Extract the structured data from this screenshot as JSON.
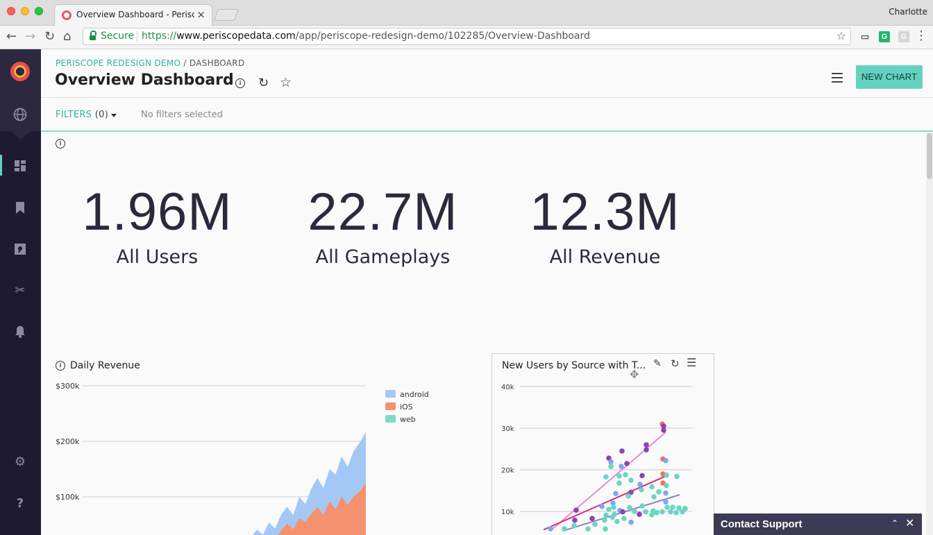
{
  "browser": {
    "tab_title": "Overview Dashboard - Perisco",
    "profile": "Charlotte",
    "secure_label": "Secure",
    "url_scheme": "https://",
    "url_host": "www.periscopedata.com",
    "url_path": "/app/periscope-redesign-demo/102285/Overview-Dashboard"
  },
  "header": {
    "breadcrumb_root": "PERISCOPE REDESIGN DEMO",
    "breadcrumb_sep": " / ",
    "breadcrumb_current": "DASHBOARD",
    "title": "Overview Dashboard",
    "new_chart_label": "NEW CHART"
  },
  "filters": {
    "label": "FILTERS",
    "count": "(0)",
    "status": "No filters selected"
  },
  "metrics": [
    {
      "value": "1.96M",
      "label": "All Users"
    },
    {
      "value": "22.7M",
      "label": "All Gameplays"
    },
    {
      "value": "12.3M",
      "label": "All Revenue"
    }
  ],
  "support": {
    "label": "Contact Support"
  },
  "colors": {
    "accent": "#64d2bf",
    "sidebar": "#1e1a31",
    "android": "#a3c8f5",
    "ios": "#f4926f",
    "web": "#7fd9c8"
  },
  "chart_data": [
    {
      "type": "area",
      "title": "Daily Revenue",
      "y_ticks": [
        "$300k",
        "$200k",
        "$100k"
      ],
      "ylim": [
        0,
        300000
      ],
      "stacked": true,
      "legend_position": "right",
      "series": [
        {
          "name": "android",
          "color": "#a3c8f5",
          "values": [
            0,
            500,
            1000,
            2000,
            5000,
            9000,
            12000,
            20000,
            15000,
            24000,
            18000,
            28000,
            30000,
            25000,
            38000,
            32000,
            45000,
            52000,
            48000,
            58000,
            62000,
            72000,
            68000,
            82000,
            88000,
            92000
          ]
        },
        {
          "name": "iOS",
          "color": "#f4926f",
          "values": [
            0,
            400,
            800,
            1500,
            4000,
            8000,
            15000,
            21000,
            17000,
            30000,
            25000,
            40000,
            52000,
            42000,
            62000,
            55000,
            70000,
            82000,
            68000,
            92000,
            78000,
            98000,
            85000,
            96000,
            102000,
            110000
          ]
        },
        {
          "name": "web",
          "color": "#7fd9c8",
          "values": [
            0,
            0,
            0,
            0,
            0,
            0,
            0,
            0,
            0,
            0,
            0,
            0,
            0,
            0,
            0,
            0,
            0,
            0,
            0,
            0,
            0,
            3000,
            1000,
            5000,
            8000,
            15000
          ]
        }
      ]
    },
    {
      "type": "scatter",
      "title": "New Users by Source with T...",
      "y_ticks": [
        "40k",
        "30k",
        "20k",
        "10k"
      ],
      "ylim": [
        0,
        40000
      ],
      "grid": true,
      "points": [
        {
          "x": 2,
          "y": 31000,
          "c": "#f0735a"
        },
        {
          "x": 4,
          "y": 30500,
          "c": "#8e44ad"
        },
        {
          "x": 4,
          "y": 29500,
          "c": "#8e44ad"
        },
        {
          "x": -21,
          "y": 26000,
          "c": "#8e44ad"
        },
        {
          "x": -21,
          "y": 24800,
          "c": "#8e44ad"
        },
        {
          "x": -56,
          "y": 24500,
          "c": "#8e44ad"
        },
        {
          "x": -75,
          "y": 22800,
          "c": "#8e44ad"
        },
        {
          "x": -72,
          "y": 21900,
          "c": "#7aa9f5"
        },
        {
          "x": -49,
          "y": 21500,
          "c": "#8e44ad"
        },
        {
          "x": 3,
          "y": 22600,
          "c": "#f0735a"
        },
        {
          "x": 7,
          "y": 22200,
          "c": "#7aa9f5"
        },
        {
          "x": -72,
          "y": 20800,
          "c": "#6dd4c3"
        },
        {
          "x": -57,
          "y": 20800,
          "c": "#7aa9f5"
        },
        {
          "x": -79,
          "y": 18300,
          "c": "#6dd4c3"
        },
        {
          "x": -60,
          "y": 18500,
          "c": "#6dd4c3"
        },
        {
          "x": -51,
          "y": 18800,
          "c": "#6dd4c3"
        },
        {
          "x": -27,
          "y": 18600,
          "c": "#8e44ad"
        },
        {
          "x": 3,
          "y": 19000,
          "c": "#f0735a"
        },
        {
          "x": 8,
          "y": 18700,
          "c": "#6dd4c3"
        },
        {
          "x": 23,
          "y": 18400,
          "c": "#6dd4c3"
        },
        {
          "x": -43,
          "y": 17500,
          "c": "#6dd4c3"
        },
        {
          "x": -60,
          "y": 16800,
          "c": "#6dd4c3"
        },
        {
          "x": -30,
          "y": 16500,
          "c": "#7aa9f5"
        },
        {
          "x": 3,
          "y": 16800,
          "c": "#f0735a"
        },
        {
          "x": 8,
          "y": 16200,
          "c": "#6dd4c3"
        },
        {
          "x": -13,
          "y": 15900,
          "c": "#6dd4c3"
        },
        {
          "x": -28,
          "y": 15200,
          "c": "#6dd4c3"
        },
        {
          "x": -43,
          "y": 14600,
          "c": "#8e44ad"
        },
        {
          "x": -65,
          "y": 14300,
          "c": "#7aa9f5"
        },
        {
          "x": -3,
          "y": 14700,
          "c": "#6dd4c3"
        },
        {
          "x": 7,
          "y": 14400,
          "c": "#7aa9f5"
        },
        {
          "x": -47,
          "y": 13700,
          "c": "#6dd4c3"
        },
        {
          "x": -10,
          "y": 13500,
          "c": "#6dd4c3"
        },
        {
          "x": 7,
          "y": 12300,
          "c": "#7aa9f5"
        },
        {
          "x": -69,
          "y": 12000,
          "c": "#7aa9f5"
        },
        {
          "x": -85,
          "y": 11200,
          "c": "#7aa9f5"
        },
        {
          "x": -68,
          "y": 11000,
          "c": "#6dd4c3"
        },
        {
          "x": -45,
          "y": 10900,
          "c": "#6dd4c3"
        },
        {
          "x": -27,
          "y": 11300,
          "c": "#6dd4c3"
        },
        {
          "x": 9,
          "y": 11000,
          "c": "#6dd4c3"
        },
        {
          "x": 17,
          "y": 11000,
          "c": "#6dd4c3"
        },
        {
          "x": 26,
          "y": 10800,
          "c": "#6dd4c3"
        },
        {
          "x": 35,
          "y": 10700,
          "c": "#6dd4c3"
        },
        {
          "x": -122,
          "y": 10300,
          "c": "#8e44ad"
        },
        {
          "x": -75,
          "y": 10500,
          "c": "#6dd4c3"
        },
        {
          "x": -59,
          "y": 10200,
          "c": "#7aa9f5"
        },
        {
          "x": -55,
          "y": 9900,
          "c": "#8e44ad"
        },
        {
          "x": -38,
          "y": 10000,
          "c": "#6dd4c3"
        },
        {
          "x": -22,
          "y": 9900,
          "c": "#6dd4c3"
        },
        {
          "x": -11,
          "y": 10100,
          "c": "#6dd4c3"
        },
        {
          "x": -6,
          "y": 9700,
          "c": "#6dd4c3"
        },
        {
          "x": 2,
          "y": 9900,
          "c": "#6dd4c3"
        },
        {
          "x": 14,
          "y": 9900,
          "c": "#6dd4c3"
        },
        {
          "x": 22,
          "y": 9700,
          "c": "#6dd4c3"
        },
        {
          "x": 31,
          "y": 9900,
          "c": "#6dd4c3"
        },
        {
          "x": -79,
          "y": 9100,
          "c": "#6dd4c3"
        },
        {
          "x": -67,
          "y": 9300,
          "c": "#6dd4c3"
        },
        {
          "x": -31,
          "y": 9300,
          "c": "#8e44ad"
        },
        {
          "x": -13,
          "y": 9200,
          "c": "#6dd4c3"
        },
        {
          "x": -70,
          "y": 8600,
          "c": "#6dd4c3"
        },
        {
          "x": -53,
          "y": 8300,
          "c": "#6dd4c3"
        },
        {
          "x": -124,
          "y": 7900,
          "c": "#8e44ad"
        },
        {
          "x": -99,
          "y": 8300,
          "c": "#8e44ad"
        },
        {
          "x": -81,
          "y": 7900,
          "c": "#6dd4c3"
        },
        {
          "x": -63,
          "y": 7600,
          "c": "#6dd4c3"
        },
        {
          "x": -43,
          "y": 7400,
          "c": "#7aa9f5"
        },
        {
          "x": -95,
          "y": 6900,
          "c": "#6dd4c3"
        },
        {
          "x": -125,
          "y": 6600,
          "c": "#6dd4c3"
        },
        {
          "x": -159,
          "y": 5800,
          "c": "#7aa9f5"
        },
        {
          "x": -139,
          "y": 5800,
          "c": "#6dd4c3"
        },
        {
          "x": -105,
          "y": 5800,
          "c": "#6dd4c3"
        },
        {
          "x": -80,
          "y": 5800,
          "c": "#6dd4c3"
        }
      ],
      "trend_lines": [
        {
          "c": "#e88ad6",
          "x": [
            -156,
            7
          ],
          "y": [
            5800,
            29000
          ]
        },
        {
          "c": "#e0287a",
          "x": [
            -169,
            6
          ],
          "y": [
            5600,
            18400
          ]
        },
        {
          "c": "#8e7fc8",
          "x": [
            -136,
            27
          ],
          "y": [
            5600,
            14000
          ]
        }
      ]
    }
  ]
}
